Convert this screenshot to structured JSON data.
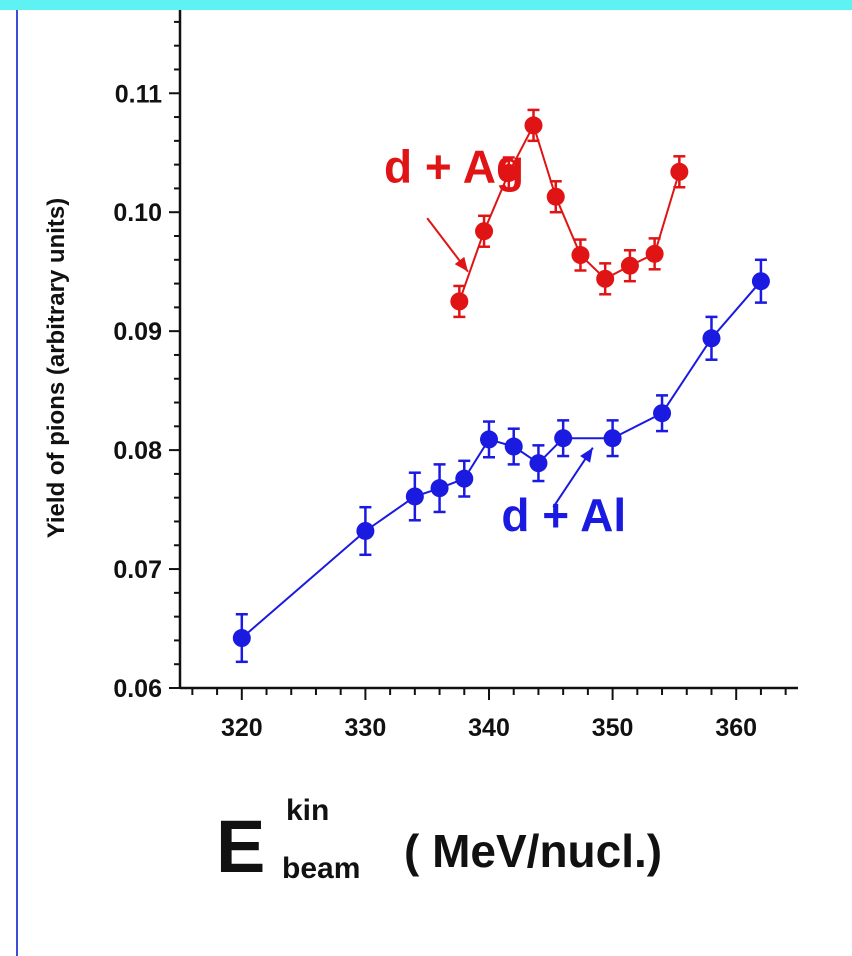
{
  "colors": {
    "top_bar": "#5ff2f2",
    "left_rule": "#3a4fd8",
    "axis": "#111111",
    "ag": "#e01414",
    "al": "#1a1ae0"
  },
  "chart_data": {
    "type": "scatter",
    "title": "",
    "ylabel": "Yield of pions (arbitrary units)",
    "xlabel": {
      "main": "E",
      "superscript": "kin",
      "subscript": "beam",
      "unit": "( MeV/nucl.)"
    },
    "xlim": [
      315,
      365
    ],
    "ylim": [
      0.06,
      0.117
    ],
    "xticks": [
      320,
      330,
      340,
      350,
      360
    ],
    "xtick_labels": [
      "320",
      "330",
      "340",
      "350",
      "360"
    ],
    "yticks": [
      0.06,
      0.07,
      0.08,
      0.09,
      0.1,
      0.11
    ],
    "ytick_labels": [
      "0.06",
      "0.07",
      "0.08",
      "0.09",
      "0.10",
      "0.11"
    ],
    "x_minor_step": 2,
    "y_minor_step": 0.002,
    "grid": false,
    "series": [
      {
        "name": "d + Ag",
        "color": "#e01414",
        "x": [
          337.6,
          339.6,
          341.6,
          343.6,
          345.4,
          347.4,
          349.4,
          351.4,
          353.4,
          355.4
        ],
        "y": [
          0.0925,
          0.0984,
          0.1033,
          0.1073,
          0.1013,
          0.0964,
          0.0944,
          0.0955,
          0.0965,
          0.1034
        ],
        "err": [
          0.0013,
          0.0013,
          0.0013,
          0.0013,
          0.0013,
          0.0013,
          0.0013,
          0.0013,
          0.0013,
          0.0013
        ]
      },
      {
        "name": "d + Al",
        "color": "#1a1ae0",
        "x": [
          320,
          330,
          334,
          336,
          338,
          340,
          342,
          344,
          346,
          350,
          354,
          358,
          362
        ],
        "y": [
          0.0642,
          0.0732,
          0.0761,
          0.0768,
          0.0776,
          0.0809,
          0.0803,
          0.0789,
          0.081,
          0.081,
          0.0831,
          0.0894,
          0.0942
        ],
        "err": [
          0.002,
          0.002,
          0.002,
          0.002,
          0.0015,
          0.0015,
          0.0015,
          0.0015,
          0.0015,
          0.0015,
          0.0015,
          0.0018,
          0.0018
        ]
      }
    ],
    "annotations": [
      {
        "text": "d + Ag",
        "series": 0,
        "text_x": 331.5,
        "text_y": 0.1025,
        "arrow_from": [
          335.0,
          0.0995
        ],
        "arrow_to": [
          338.3,
          0.095
        ]
      },
      {
        "text": "d + Al",
        "series": 1,
        "text_x": 341.0,
        "text_y": 0.0732,
        "arrow_from": [
          345.2,
          0.0752
        ],
        "arrow_to": [
          348.4,
          0.0802
        ]
      }
    ]
  }
}
